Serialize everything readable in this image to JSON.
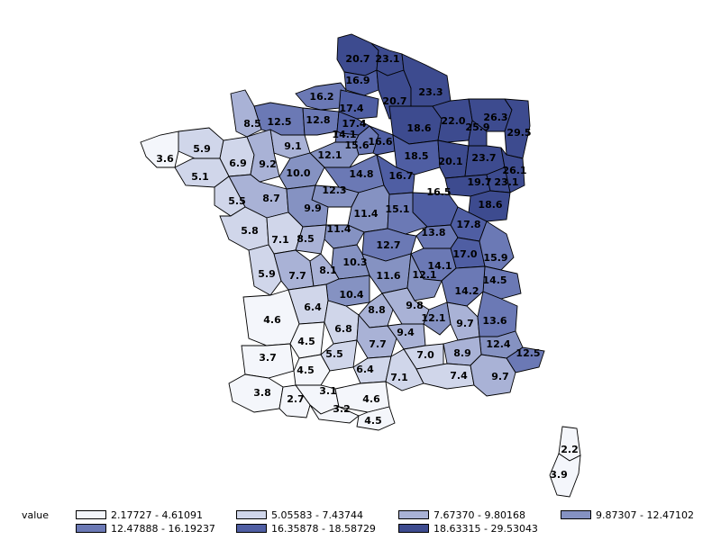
{
  "map": {
    "colors": [
      "#f4f6fb",
      "#d0d6ea",
      "#a9b2d6",
      "#8592c2",
      "#6b79b5",
      "#4f5ea3",
      "#3d4b8f"
    ],
    "regions": [
      {
        "label": "20.7",
        "cls": 6
      },
      {
        "label": "23.1",
        "cls": 6
      },
      {
        "label": "16.9",
        "cls": 5
      },
      {
        "label": "16.2",
        "cls": 4
      },
      {
        "label": "20.7",
        "cls": 6
      },
      {
        "label": "23.3",
        "cls": 6
      },
      {
        "label": "8.5",
        "cls": 2
      },
      {
        "label": "12.5",
        "cls": 4
      },
      {
        "label": "12.8",
        "cls": 4
      },
      {
        "label": "17.4",
        "cls": 5
      },
      {
        "label": "17.4",
        "cls": 5
      },
      {
        "label": "26.3",
        "cls": 6
      },
      {
        "label": "14.1",
        "cls": 4
      },
      {
        "label": "18.6",
        "cls": 6
      },
      {
        "label": "22.0",
        "cls": 6
      },
      {
        "label": "25.9",
        "cls": 6
      },
      {
        "label": "29.5",
        "cls": 6
      },
      {
        "label": "5.9",
        "cls": 1
      },
      {
        "label": "9.1",
        "cls": 2
      },
      {
        "label": "15.6",
        "cls": 4
      },
      {
        "label": "16.6",
        "cls": 5
      },
      {
        "label": "3.6",
        "cls": 0
      },
      {
        "label": "6.9",
        "cls": 1
      },
      {
        "label": "9.2",
        "cls": 2
      },
      {
        "label": "12.1",
        "cls": 3
      },
      {
        "label": "18.5",
        "cls": 5
      },
      {
        "label": "20.1",
        "cls": 6
      },
      {
        "label": "23.7",
        "cls": 6
      },
      {
        "label": "5.1",
        "cls": 1
      },
      {
        "label": "10.0",
        "cls": 3
      },
      {
        "label": "14.8",
        "cls": 4
      },
      {
        "label": "16.7",
        "cls": 5
      },
      {
        "label": "26.1",
        "cls": 6
      },
      {
        "label": "19.7",
        "cls": 6
      },
      {
        "label": "23.1",
        "cls": 6
      },
      {
        "label": "12.3",
        "cls": 3
      },
      {
        "label": "8.7",
        "cls": 2
      },
      {
        "label": "16.5",
        "cls": 5
      },
      {
        "label": "5.5",
        "cls": 1
      },
      {
        "label": "9.9",
        "cls": 3
      },
      {
        "label": "18.6",
        "cls": 6
      },
      {
        "label": "11.4",
        "cls": 3
      },
      {
        "label": "15.1",
        "cls": 4
      },
      {
        "label": "5.8",
        "cls": 1
      },
      {
        "label": "11.4",
        "cls": 3
      },
      {
        "label": "13.8",
        "cls": 4
      },
      {
        "label": "17.8",
        "cls": 5
      },
      {
        "label": "7.1",
        "cls": 1
      },
      {
        "label": "8.5",
        "cls": 2
      },
      {
        "label": "12.7",
        "cls": 4
      },
      {
        "label": "17.0",
        "cls": 5
      },
      {
        "label": "15.9",
        "cls": 4
      },
      {
        "label": "10.3",
        "cls": 3
      },
      {
        "label": "14.1",
        "cls": 4
      },
      {
        "label": "5.9",
        "cls": 1
      },
      {
        "label": "7.7",
        "cls": 2
      },
      {
        "label": "8.1",
        "cls": 2
      },
      {
        "label": "11.6",
        "cls": 3
      },
      {
        "label": "12.1",
        "cls": 3
      },
      {
        "label": "14.5",
        "cls": 4
      },
      {
        "label": "10.4",
        "cls": 3
      },
      {
        "label": "14.2",
        "cls": 4
      },
      {
        "label": "6.4",
        "cls": 1
      },
      {
        "label": "9.8",
        "cls": 2
      },
      {
        "label": "4.6",
        "cls": 0
      },
      {
        "label": "8.8",
        "cls": 2
      },
      {
        "label": "12.1",
        "cls": 3
      },
      {
        "label": "9.7",
        "cls": 2
      },
      {
        "label": "13.6",
        "cls": 4
      },
      {
        "label": "6.8",
        "cls": 1
      },
      {
        "label": "4.5",
        "cls": 0
      },
      {
        "label": "9.4",
        "cls": 2
      },
      {
        "label": "7.7",
        "cls": 2
      },
      {
        "label": "12.4",
        "cls": 3
      },
      {
        "label": "3.7",
        "cls": 0
      },
      {
        "label": "5.5",
        "cls": 1
      },
      {
        "label": "7.0",
        "cls": 1
      },
      {
        "label": "8.9",
        "cls": 2
      },
      {
        "label": "12.5",
        "cls": 4
      },
      {
        "label": "4.5",
        "cls": 0
      },
      {
        "label": "6.4",
        "cls": 1
      },
      {
        "label": "7.1",
        "cls": 1
      },
      {
        "label": "7.4",
        "cls": 1
      },
      {
        "label": "9.7",
        "cls": 2
      },
      {
        "label": "3.8",
        "cls": 0
      },
      {
        "label": "3.1",
        "cls": 0
      },
      {
        "label": "2.7",
        "cls": 0
      },
      {
        "label": "4.6",
        "cls": 0
      },
      {
        "label": "3.2",
        "cls": 0
      },
      {
        "label": "4.5",
        "cls": 0
      },
      {
        "label": "2.2",
        "cls": 0
      },
      {
        "label": "3.9",
        "cls": 0
      }
    ]
  },
  "legend": {
    "title": "value",
    "items": [
      {
        "label": "2.17727 - 4.61091",
        "color": "#f4f6fb"
      },
      {
        "label": "5.05583 - 7.43744",
        "color": "#d0d6ea"
      },
      {
        "label": "7.67370 - 9.80168",
        "color": "#a9b2d6"
      },
      {
        "label": "9.87307 - 12.47102",
        "color": "#8592c2"
      },
      {
        "label": "12.47888 - 16.19237",
        "color": "#6b79b5"
      },
      {
        "label": "16.35878 - 18.58729",
        "color": "#4f5ea3"
      },
      {
        "label": "18.63315 - 29.53043",
        "color": "#3d4b8f"
      }
    ]
  }
}
